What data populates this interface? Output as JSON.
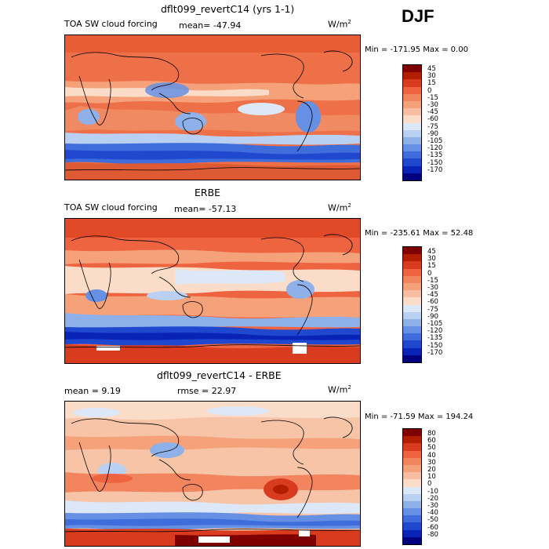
{
  "season": "DJF",
  "panels": [
    {
      "title": "dflt099_revertC14 (yrs 1-1)",
      "variable": "TOA SW cloud forcing",
      "mean_text": "mean= -47.94",
      "units": "W/m",
      "units_exp": "2",
      "minmax": "Min = -171.95 Max =    0.00",
      "levels": [
        "45",
        "30",
        "15",
        "0",
        "-15",
        "-30",
        "-45",
        "-60",
        "-75",
        "-90",
        "-105",
        "-120",
        "-135",
        "-150",
        "-170"
      ],
      "colors": [
        "#7f0000",
        "#b31d00",
        "#d93b1e",
        "#ef6440",
        "#f2855e",
        "#f5a27b",
        "#f8bea1",
        "#fbdcc8",
        "#dce8f7",
        "#b9d0f2",
        "#8eb1ea",
        "#6690e3",
        "#3f6ddb",
        "#1f48cf",
        "#0823b6",
        "#00007f"
      ]
    },
    {
      "title": "ERBE",
      "variable": "TOA SW cloud forcing",
      "mean_text": "mean= -57.13",
      "units": "W/m",
      "units_exp": "2",
      "minmax": "Min = -235.61 Max =  52.48",
      "levels": [
        "45",
        "30",
        "15",
        "0",
        "-15",
        "-30",
        "-45",
        "-60",
        "-75",
        "-90",
        "-105",
        "-120",
        "-135",
        "-150",
        "-170"
      ],
      "colors": [
        "#7f0000",
        "#b31d00",
        "#d93b1e",
        "#ef6440",
        "#f2855e",
        "#f5a27b",
        "#f8bea1",
        "#fbdcc8",
        "#dce8f7",
        "#b9d0f2",
        "#8eb1ea",
        "#6690e3",
        "#3f6ddb",
        "#1f48cf",
        "#0823b6",
        "#00007f"
      ]
    },
    {
      "title": "dflt099_revertC14 - ERBE",
      "mean_text": "mean =   9.19",
      "rmse_text": "rmse =  22.97",
      "units": "W/m",
      "units_exp": "2",
      "minmax": "Min = -71.59 Max = 194.24",
      "levels": [
        "80",
        "60",
        "50",
        "40",
        "30",
        "20",
        "10",
        "0",
        "-10",
        "-20",
        "-30",
        "-40",
        "-50",
        "-60",
        "-80"
      ],
      "colors": [
        "#7f0000",
        "#b31d00",
        "#d93b1e",
        "#ef6440",
        "#f2855e",
        "#f5a27b",
        "#f8bea1",
        "#fbdcc8",
        "#dce8f7",
        "#b9d0f2",
        "#8eb1ea",
        "#6690e3",
        "#3f6ddb",
        "#1f48cf",
        "#0823b6",
        "#00007f"
      ]
    }
  ]
}
